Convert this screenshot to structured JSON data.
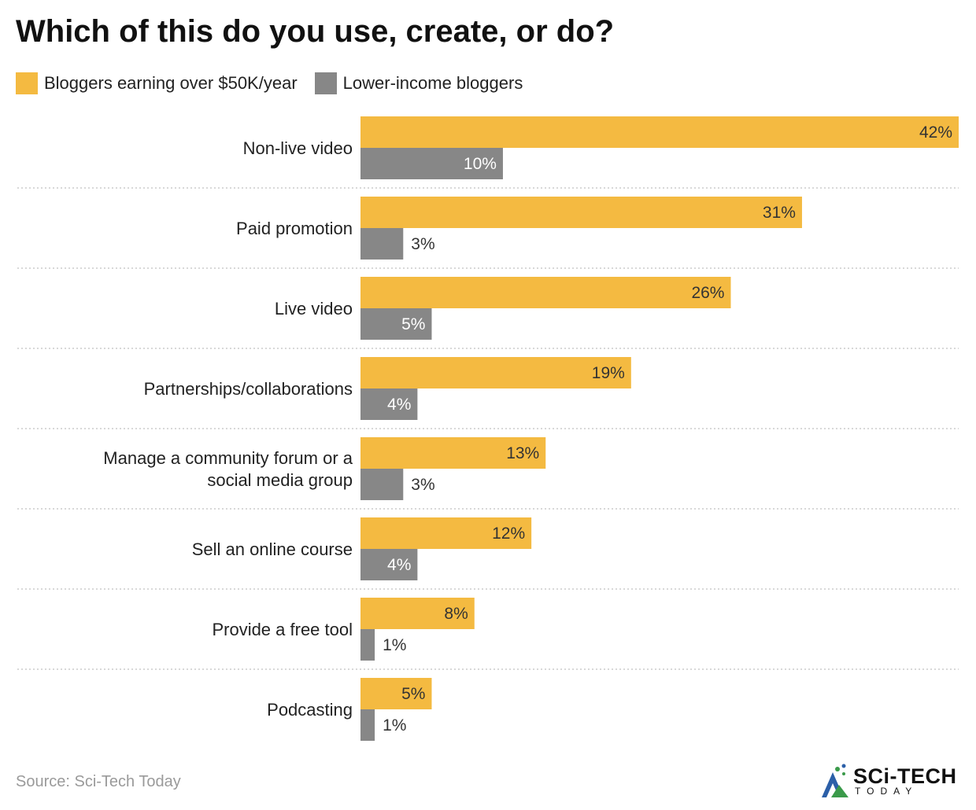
{
  "chart_data": {
    "type": "bar",
    "orientation": "horizontal",
    "title": "Which of this do you use, create, or do?",
    "categories": [
      "Non-live video",
      "Paid promotion",
      "Live video",
      "Partnerships/collaborations",
      "Manage a community forum or a social media group",
      "Sell an online course",
      "Provide a free tool",
      "Podcasting"
    ],
    "series": [
      {
        "name": "Bloggers earning over $50K/year",
        "values": [
          42,
          31,
          26,
          19,
          13,
          12,
          8,
          5
        ]
      },
      {
        "name": "Lower-income bloggers",
        "values": [
          10,
          3,
          5,
          4,
          3,
          4,
          1,
          1
        ]
      }
    ],
    "value_suffix": "%",
    "xlim": [
      0,
      42
    ],
    "grid": false,
    "legend_position": "top-left",
    "colors": {
      "series_1": "#f4ba41",
      "series_2": "#878787",
      "divider": "#cccccc"
    }
  },
  "source": "Source: Sci-Tech Today",
  "logo": {
    "name": "Sci-Tech Today",
    "text": "SCi-TECH",
    "subtext": "TODAY"
  }
}
